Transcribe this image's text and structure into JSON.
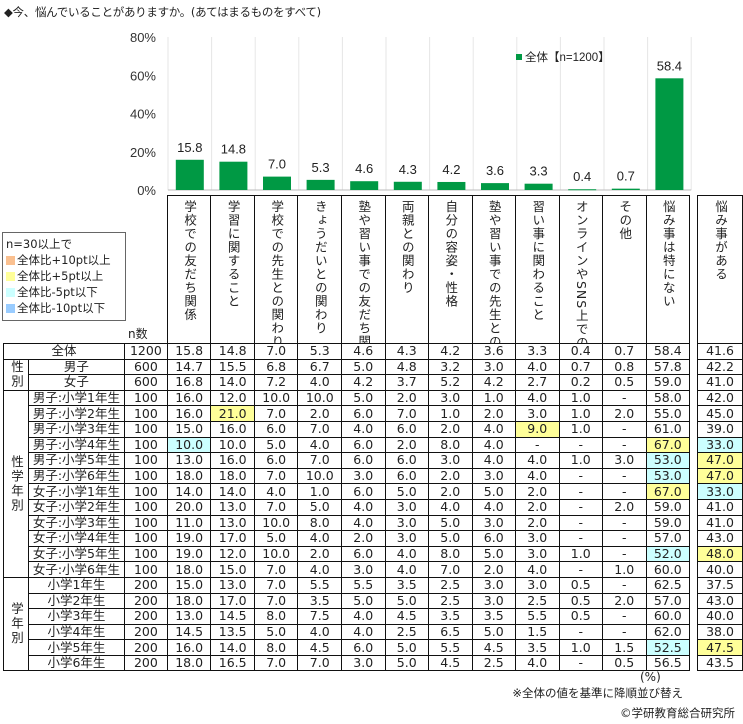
{
  "title": "◆今、悩んでいることがありますか。(あてはまるものをすべて)",
  "colors": {
    "bar": "#009944",
    "plus10": "#fac090",
    "plus5": "#ffff99",
    "minus5": "#ccffff",
    "minus10": "#99ccff"
  },
  "chart_data": {
    "type": "bar",
    "title": "◆今、悩んでいることがありますか。(あてはまるものをすべて)",
    "categories": [
      "学校での友だち関係",
      "学習に関すること",
      "学校での先生との関わり",
      "きょうだいとの関わり",
      "塾や習い事での友だち関係",
      "両親との関わり",
      "自分の容姿・性格",
      "塾や習い事での先生との関わり",
      "習い事に関わること",
      "オンラインやSNS上での知り合いとのやりとり",
      "その他",
      "悩み事は特にない"
    ],
    "series": [
      {
        "name": "全体【n=1200】",
        "values": [
          15.8,
          14.8,
          7.0,
          5.3,
          4.6,
          4.3,
          4.2,
          3.6,
          3.3,
          0.4,
          0.7,
          58.4
        ]
      }
    ],
    "value_labels": [
      "15.8",
      "14.8",
      "7.0",
      "5.3",
      "4.6",
      "4.3",
      "4.2",
      "3.6",
      "3.3",
      "0.4",
      "0.7",
      "58.4"
    ],
    "ylim": [
      0,
      80
    ],
    "yticks": [
      "0%",
      "20%",
      "40%",
      "60%",
      "80%"
    ],
    "legend": "top-right",
    "xlabel": "",
    "ylabel": ""
  },
  "legend": {
    "heading": "n=30以上で",
    "items": [
      "全体比+10pt以上",
      "全体比+5pt以上",
      "全体比-5pt以下",
      "全体比-10pt以下"
    ]
  },
  "table": {
    "n_header": "n数",
    "extra_header": "悩み事がある",
    "groups": {
      "sex": "性別",
      "sexgrade": "性学年別",
      "grade": "学年別"
    },
    "rows": [
      {
        "label": "全体",
        "n": "1200",
        "v": [
          "15.8",
          "14.8",
          "7.0",
          "5.3",
          "4.6",
          "4.3",
          "4.2",
          "3.6",
          "3.3",
          "0.4",
          "0.7",
          "58.4"
        ],
        "x": "41.6",
        "hl": {}
      },
      {
        "label": "男子",
        "n": "600",
        "v": [
          "14.7",
          "15.5",
          "6.8",
          "6.7",
          "5.0",
          "4.8",
          "3.2",
          "3.0",
          "4.0",
          "0.7",
          "0.8",
          "57.8"
        ],
        "x": "42.2",
        "hl": {}
      },
      {
        "label": "女子",
        "n": "600",
        "v": [
          "16.8",
          "14.0",
          "7.2",
          "4.0",
          "4.2",
          "3.7",
          "5.2",
          "4.2",
          "2.7",
          "0.2",
          "0.5",
          "59.0"
        ],
        "x": "41.0",
        "hl": {}
      },
      {
        "label": "男子:小学1年生",
        "n": "100",
        "v": [
          "16.0",
          "12.0",
          "10.0",
          "10.0",
          "5.0",
          "2.0",
          "3.0",
          "1.0",
          "4.0",
          "1.0",
          "-",
          "58.0"
        ],
        "x": "42.0",
        "hl": {}
      },
      {
        "label": "男子:小学2年生",
        "n": "100",
        "v": [
          "16.0",
          "21.0",
          "7.0",
          "2.0",
          "6.0",
          "7.0",
          "1.0",
          "2.0",
          "3.0",
          "1.0",
          "2.0",
          "55.0"
        ],
        "x": "45.0",
        "hl": {
          "1": "y"
        }
      },
      {
        "label": "男子:小学3年生",
        "n": "100",
        "v": [
          "15.0",
          "16.0",
          "6.0",
          "7.0",
          "4.0",
          "6.0",
          "2.0",
          "4.0",
          "9.0",
          "1.0",
          "-",
          "61.0"
        ],
        "x": "39.0",
        "hl": {
          "8": "y"
        }
      },
      {
        "label": "男子:小学4年生",
        "n": "100",
        "v": [
          "10.0",
          "10.0",
          "5.0",
          "4.0",
          "6.0",
          "2.0",
          "8.0",
          "4.0",
          "-",
          "-",
          "-",
          "67.0"
        ],
        "x": "33.0",
        "hl": {
          "0": "c",
          "11": "y",
          "x": "c"
        }
      },
      {
        "label": "男子:小学5年生",
        "n": "100",
        "v": [
          "13.0",
          "16.0",
          "6.0",
          "7.0",
          "6.0",
          "6.0",
          "3.0",
          "4.0",
          "4.0",
          "1.0",
          "3.0",
          "53.0"
        ],
        "x": "47.0",
        "hl": {
          "11": "c",
          "x": "y"
        }
      },
      {
        "label": "男子:小学6年生",
        "n": "100",
        "v": [
          "18.0",
          "18.0",
          "7.0",
          "10.0",
          "3.0",
          "6.0",
          "2.0",
          "3.0",
          "4.0",
          "-",
          "-",
          "53.0"
        ],
        "x": "47.0",
        "hl": {
          "11": "c",
          "x": "y"
        }
      },
      {
        "label": "女子:小学1年生",
        "n": "100",
        "v": [
          "14.0",
          "14.0",
          "4.0",
          "1.0",
          "6.0",
          "5.0",
          "2.0",
          "5.0",
          "2.0",
          "-",
          "-",
          "67.0"
        ],
        "x": "33.0",
        "hl": {
          "11": "y",
          "x": "c"
        }
      },
      {
        "label": "女子:小学2年生",
        "n": "100",
        "v": [
          "20.0",
          "13.0",
          "7.0",
          "5.0",
          "4.0",
          "3.0",
          "4.0",
          "4.0",
          "2.0",
          "-",
          "2.0",
          "59.0"
        ],
        "x": "41.0",
        "hl": {}
      },
      {
        "label": "女子:小学3年生",
        "n": "100",
        "v": [
          "11.0",
          "13.0",
          "10.0",
          "8.0",
          "4.0",
          "3.0",
          "5.0",
          "3.0",
          "2.0",
          "-",
          "-",
          "59.0"
        ],
        "x": "41.0",
        "hl": {}
      },
      {
        "label": "女子:小学4年生",
        "n": "100",
        "v": [
          "19.0",
          "17.0",
          "5.0",
          "4.0",
          "2.0",
          "3.0",
          "5.0",
          "6.0",
          "3.0",
          "-",
          "-",
          "57.0"
        ],
        "x": "43.0",
        "hl": {}
      },
      {
        "label": "女子:小学5年生",
        "n": "100",
        "v": [
          "19.0",
          "12.0",
          "10.0",
          "2.0",
          "6.0",
          "4.0",
          "8.0",
          "5.0",
          "3.0",
          "1.0",
          "-",
          "52.0"
        ],
        "x": "48.0",
        "hl": {
          "11": "c",
          "x": "y"
        }
      },
      {
        "label": "女子:小学6年生",
        "n": "100",
        "v": [
          "18.0",
          "15.0",
          "7.0",
          "4.0",
          "3.0",
          "4.0",
          "7.0",
          "2.0",
          "4.0",
          "-",
          "1.0",
          "60.0"
        ],
        "x": "40.0",
        "hl": {}
      },
      {
        "label": "小学1年生",
        "n": "200",
        "v": [
          "15.0",
          "13.0",
          "7.0",
          "5.5",
          "5.5",
          "3.5",
          "2.5",
          "3.0",
          "3.0",
          "0.5",
          "-",
          "62.5"
        ],
        "x": "37.5",
        "hl": {}
      },
      {
        "label": "小学2年生",
        "n": "200",
        "v": [
          "18.0",
          "17.0",
          "7.0",
          "3.5",
          "5.0",
          "5.0",
          "2.5",
          "3.0",
          "2.5",
          "0.5",
          "2.0",
          "57.0"
        ],
        "x": "43.0",
        "hl": {}
      },
      {
        "label": "小学3年生",
        "n": "200",
        "v": [
          "13.0",
          "14.5",
          "8.0",
          "7.5",
          "4.0",
          "4.5",
          "3.5",
          "3.5",
          "5.5",
          "0.5",
          "-",
          "60.0"
        ],
        "x": "40.0",
        "hl": {}
      },
      {
        "label": "小学4年生",
        "n": "200",
        "v": [
          "14.5",
          "13.5",
          "5.0",
          "4.0",
          "4.0",
          "2.5",
          "6.5",
          "5.0",
          "1.5",
          "-",
          "-",
          "62.0"
        ],
        "x": "38.0",
        "hl": {}
      },
      {
        "label": "小学5年生",
        "n": "200",
        "v": [
          "16.0",
          "14.0",
          "8.0",
          "4.5",
          "6.0",
          "5.0",
          "5.5",
          "4.5",
          "3.5",
          "1.0",
          "1.5",
          "52.5"
        ],
        "x": "47.5",
        "hl": {
          "11": "c",
          "x": "y"
        }
      },
      {
        "label": "小学6年生",
        "n": "200",
        "v": [
          "18.0",
          "16.5",
          "7.0",
          "7.0",
          "3.0",
          "5.0",
          "4.5",
          "2.5",
          "4.0",
          "-",
          "0.5",
          "56.5"
        ],
        "x": "43.5",
        "hl": {}
      }
    ]
  },
  "footer": {
    "unit": "(%)",
    "note": "※全体の値を基準に降順並び替え",
    "copyright": "©学研教育総合研究所"
  }
}
